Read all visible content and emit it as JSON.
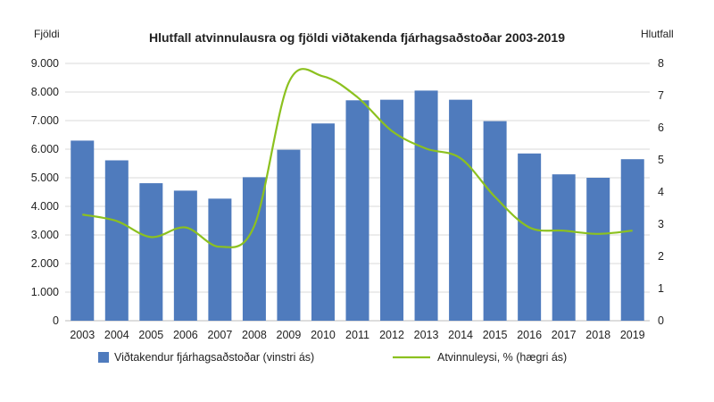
{
  "chart_data": {
    "type": "bar+line",
    "title": "Hlutfall atvinnulausra og fjöldi viðtakenda fjárhagsaðstoðar 2003-2019",
    "ylabel_left": "Fjöldi",
    "ylabel_right": "Hlutfall",
    "categories": [
      "2003",
      "2004",
      "2005",
      "2006",
      "2007",
      "2008",
      "2009",
      "2010",
      "2011",
      "2012",
      "2013",
      "2014",
      "2015",
      "2016",
      "2017",
      "2018",
      "2019"
    ],
    "ylim_left": [
      0,
      9000
    ],
    "ylim_right": [
      0,
      8
    ],
    "left_ticks": [
      "0",
      "1.000",
      "2.000",
      "3.000",
      "4.000",
      "5.000",
      "6.000",
      "7.000",
      "8.000",
      "9.000"
    ],
    "right_ticks": [
      "0",
      "1",
      "2",
      "3",
      "4",
      "5",
      "6",
      "7",
      "8"
    ],
    "grid": true,
    "legend_position": "bottom",
    "series": [
      {
        "name": "Viðtakendur fjárhagsaðstoðar (vinstri ás)",
        "type": "bar",
        "axis": "left",
        "color": "#4f7bbd",
        "values": [
          6300,
          5610,
          4810,
          4550,
          4270,
          5020,
          5980,
          6900,
          7710,
          7730,
          8050,
          7730,
          6980,
          5850,
          5120,
          5000,
          5650
        ]
      },
      {
        "name": "Atvinnuleysi, % (hægri ás)",
        "type": "line",
        "axis": "right",
        "color": "#8cc11f",
        "values": [
          3.3,
          3.1,
          2.6,
          2.9,
          2.3,
          2.95,
          7.4,
          7.6,
          6.95,
          5.9,
          5.35,
          5.05,
          3.85,
          2.9,
          2.8,
          2.7,
          2.8
        ]
      }
    ]
  }
}
